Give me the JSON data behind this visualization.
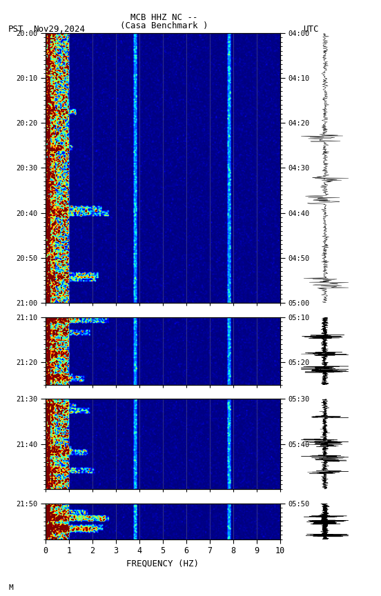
{
  "title_line1": "MCB HHZ NC --",
  "title_line2": "(Casa Benchmark )",
  "left_label": "PST",
  "left_date": "Nov29,2024",
  "right_label": "UTC",
  "xlabel": "FREQUENCY (HZ)",
  "freq_ticks": [
    0,
    1,
    2,
    3,
    4,
    5,
    6,
    7,
    8,
    9,
    10
  ],
  "panels": [
    {
      "duration": 60,
      "pst_ticks": [
        "20:00",
        "20:10",
        "20:20",
        "20:30",
        "20:40",
        "20:50",
        "21:00"
      ],
      "utc_ticks": [
        "04:00",
        "04:10",
        "04:20",
        "04:30",
        "04:40",
        "04:50",
        "05:00"
      ],
      "tick_offsets": [
        0,
        10,
        20,
        30,
        40,
        50,
        60
      ]
    },
    {
      "duration": 15,
      "pst_ticks": [
        "21:10",
        "21:20"
      ],
      "utc_ticks": [
        "05:10",
        "05:20"
      ],
      "tick_offsets": [
        0,
        10
      ]
    },
    {
      "duration": 20,
      "pst_ticks": [
        "21:30",
        "21:40"
      ],
      "utc_ticks": [
        "05:30",
        "05:40"
      ],
      "tick_offsets": [
        0,
        10
      ]
    },
    {
      "duration": 8,
      "pst_ticks": [
        "21:50"
      ],
      "utc_ticks": [
        "05:50"
      ],
      "tick_offsets": [
        0
      ]
    }
  ],
  "footnote": "M"
}
